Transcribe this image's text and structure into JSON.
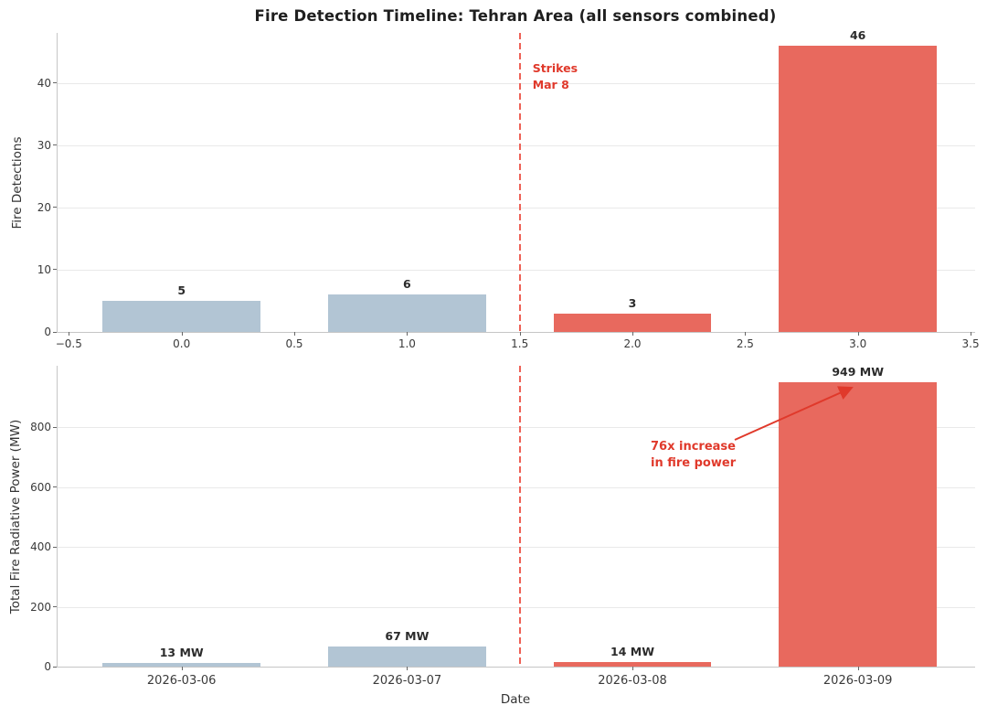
{
  "title": "Fire Detection Timeline: Tehran Area (all sensors combined)",
  "colors": {
    "bar_pre_strike": "#b2c5d4",
    "bar_post_strike": "#e8695e",
    "strike_line": "#ee6156",
    "annotation_red": "#e0392b",
    "grid": "#e9e9e9",
    "spine": "#c6c6c6",
    "tick_text": "#3a3a3a"
  },
  "chart_data": [
    {
      "type": "bar",
      "panel": "top",
      "ylabel": "Fire Detections",
      "x": [
        0,
        1,
        2,
        3
      ],
      "values": [
        5,
        6,
        3,
        46
      ],
      "bar_labels": [
        "5",
        "6",
        "3",
        "46"
      ],
      "bar_colors": [
        "#b2c5d4",
        "#b2c5d4",
        "#e8695e",
        "#e8695e"
      ],
      "bar_width": 0.7,
      "xlim": [
        -0.55,
        3.52
      ],
      "ylim": [
        0,
        48
      ],
      "yticks": [
        0,
        10,
        20,
        30,
        40
      ],
      "xticks": [
        -0.5,
        0,
        0.5,
        1,
        1.5,
        2,
        2.5,
        3,
        3.5
      ],
      "xtick_labels": [
        "−0.5",
        "0.0",
        "0.5",
        "1.0",
        "1.5",
        "2.0",
        "2.5",
        "3.0",
        "3.5"
      ],
      "grid": "horizontal",
      "legend": "none",
      "vline": {
        "x": 1.5,
        "label": "Strikes\nMar 8"
      }
    },
    {
      "type": "bar",
      "panel": "bottom",
      "xlabel": "Date",
      "ylabel": "Total Fire Radiative Power (MW)",
      "categories": [
        "2026-03-06",
        "2026-03-07",
        "2026-03-08",
        "2026-03-09"
      ],
      "x": [
        0,
        1,
        2,
        3
      ],
      "values": [
        13,
        67,
        14,
        949
      ],
      "bar_labels": [
        "13 MW",
        "67 MW",
        "14 MW",
        "949 MW"
      ],
      "bar_colors": [
        "#b2c5d4",
        "#b2c5d4",
        "#e8695e",
        "#e8695e"
      ],
      "bar_width": 0.7,
      "xlim": [
        -0.55,
        3.52
      ],
      "ylim": [
        0,
        1005
      ],
      "yticks": [
        0,
        200,
        400,
        600,
        800
      ],
      "xticks": [
        0,
        1,
        2,
        3
      ],
      "xtick_labels": [
        "2026-03-06",
        "2026-03-07",
        "2026-03-08",
        "2026-03-09"
      ],
      "grid": "horizontal",
      "legend": "none",
      "vline": {
        "x": 1.5
      },
      "annotation": {
        "text": "76x increase\nin fire power"
      }
    }
  ]
}
